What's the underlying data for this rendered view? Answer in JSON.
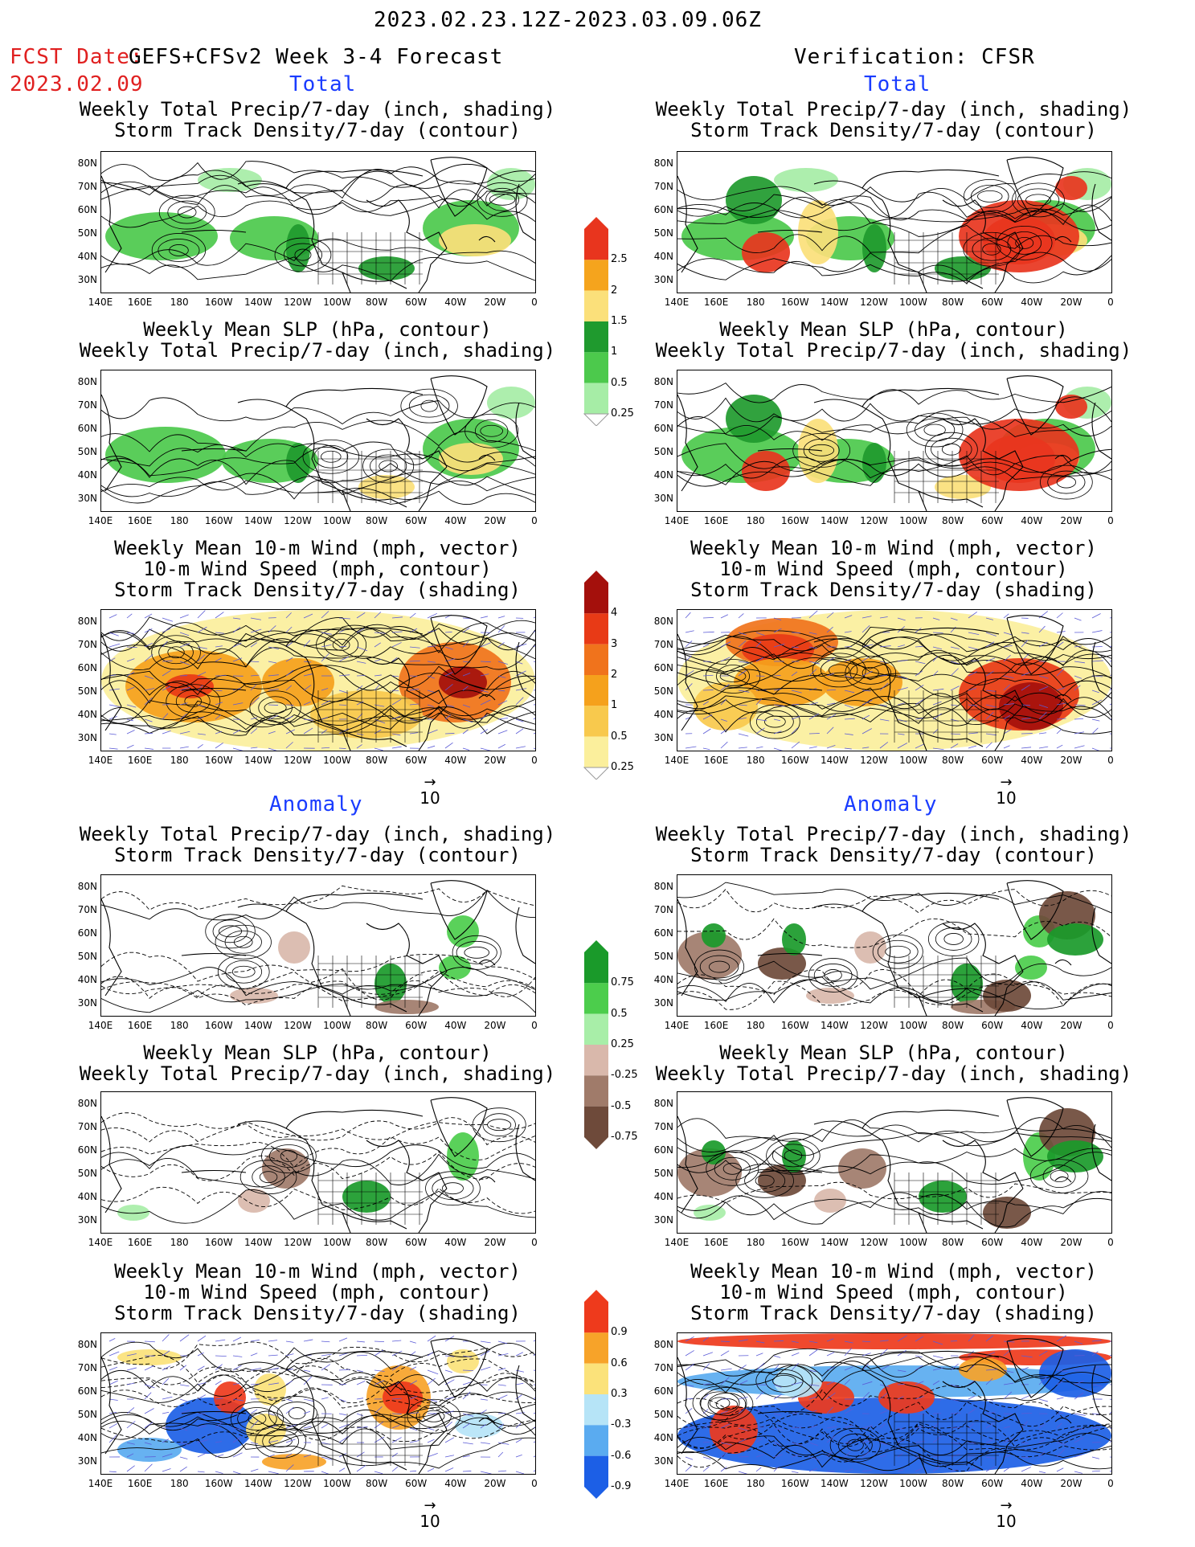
{
  "header": {
    "date_range": "2023.02.23.12Z-2023.03.09.06Z",
    "fcst_label": "FCST Date:",
    "fcst_date": "2023.02.09",
    "model": "GEFS+CFSv2 Week 3-4 Forecast",
    "verification": "Verification: CFSR"
  },
  "sections": {
    "total": "Total",
    "anomaly": "Anomaly"
  },
  "panel_titles": {
    "precip_storm": [
      "Weekly Total Precip/7-day (inch, shading)",
      "Storm Track Density/7-day (contour)"
    ],
    "slp_precip": [
      "Weekly Mean SLP (hPa, contour)",
      "Weekly Total Precip/7-day (inch, shading)"
    ],
    "wind_storm": [
      "Weekly Mean 10-m Wind (mph, vector)",
      "10-m Wind Speed (mph, contour)",
      "Storm Track Density/7-day (shading)"
    ]
  },
  "axes": {
    "lat_labels": [
      "80N",
      "70N",
      "60N",
      "50N",
      "40N",
      "30N"
    ],
    "lon_labels": [
      "140E",
      "160E",
      "180",
      "160W",
      "140W",
      "120W",
      "100W",
      "80W",
      "60W",
      "40W",
      "20W",
      "0"
    ]
  },
  "vector_ref": "10",
  "colorbars": {
    "precip_total": {
      "labels": [
        "2.5",
        "2",
        "1.5",
        "1",
        "0.5",
        "0.25"
      ],
      "colors": [
        "#e8351e",
        "#f5a41d",
        "#fbe07a",
        "#1f9a2e",
        "#4cc94c",
        "#a6eda6"
      ]
    },
    "storm_total": {
      "labels": [
        "4",
        "3",
        "2",
        "1",
        "0.5",
        "0.25"
      ],
      "colors": [
        "#a4100c",
        "#e83a16",
        "#f0731c",
        "#f5a11c",
        "#f8c94d",
        "#fbef9c"
      ]
    },
    "precip_anom": {
      "labels": [
        "0.75",
        "0.5",
        "0.25",
        "-0.25",
        "-0.5",
        "-0.75"
      ],
      "colors": [
        "#1a9a2a",
        "#4ccd4c",
        "#a8eea8",
        "#d9b8ab",
        "#a07b6a",
        "#6e4a3a"
      ]
    },
    "storm_anom": {
      "labels": [
        "0.9",
        "0.6",
        "0.3",
        "-0.3",
        "-0.6",
        "-0.9"
      ],
      "colors": [
        "#ee3a1c",
        "#f7a329",
        "#fbe27a",
        "#b6e4f7",
        "#5aabf0",
        "#1c5fe6"
      ]
    }
  }
}
